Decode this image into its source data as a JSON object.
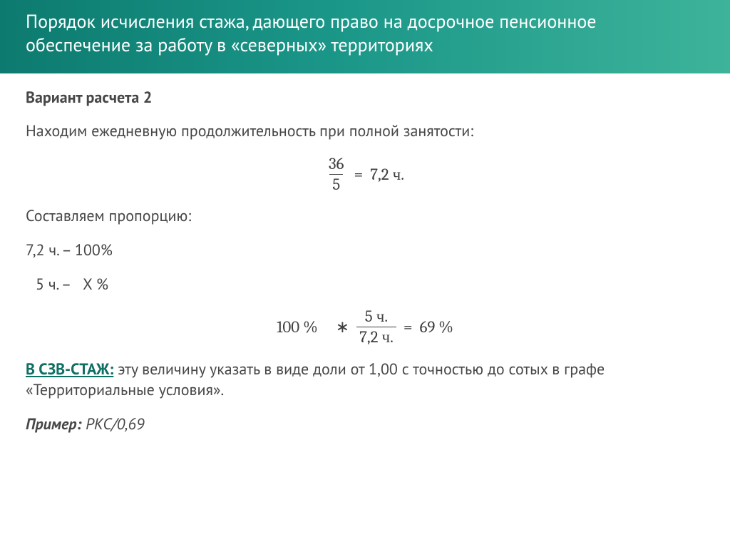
{
  "header": {
    "title": "Порядок исчисления стажа, дающего право на досрочное пенсионное обеспечение за работу в «северных» территориях"
  },
  "body": {
    "variant": "Вариант расчета 2",
    "intro": "Находим ежедневную продолжительность при полной занятости:",
    "formula1": {
      "num": "36",
      "den": "5",
      "eq": "=",
      "rhs": "7,2 ч."
    },
    "prop_label": "Составляем пропорцию:",
    "prop_line1": "7,2 ч. – 100%",
    "prop_line2_a": "5 ч. –",
    "prop_line2_b": "X %",
    "formula2": {
      "lhs": "100 %",
      "mul": "∗",
      "num": "5 ч.",
      "den": "7,2 ч.",
      "eq": "=",
      "rhs": "69 %"
    },
    "szv_label": "В СЗВ-СТАЖ:",
    "szv_text": " эту величину указать в виде доли от 1,00 с точностью до сотых в графе «Территориальные условия».",
    "example_label": "Пример:",
    "example_value": " РКС/0,69"
  }
}
